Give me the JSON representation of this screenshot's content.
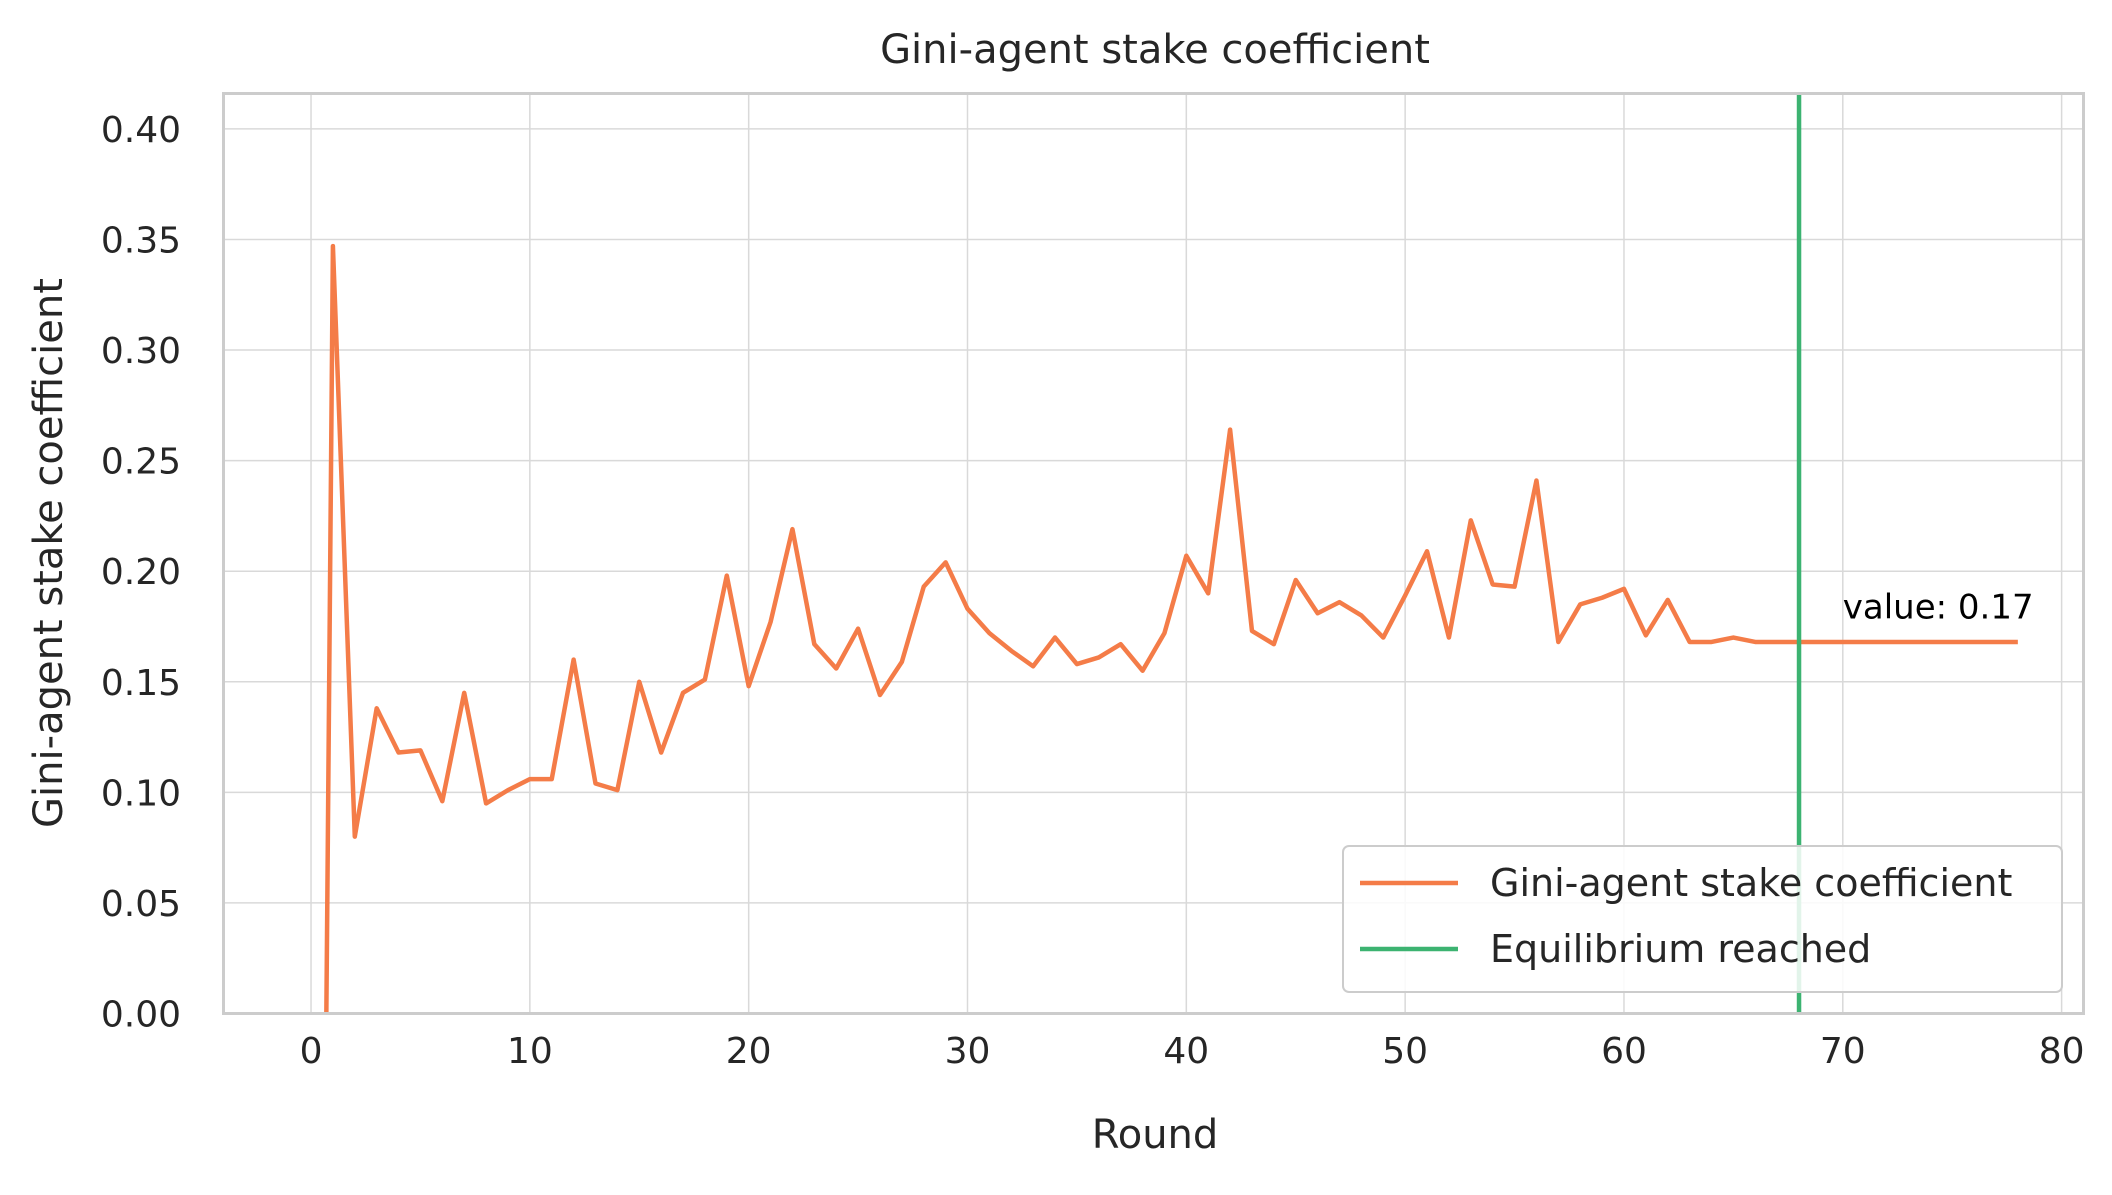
{
  "chart_data": {
    "type": "line",
    "title": "Gini-agent stake coefficient",
    "xlabel": "Round",
    "ylabel": "Gini-agent stake coefficient",
    "xlim": [
      -4,
      81
    ],
    "ylim": [
      0,
      0.416
    ],
    "grid": true,
    "legend_placement": "lower-right",
    "xticks": [
      0,
      10,
      20,
      30,
      40,
      50,
      60,
      70,
      80
    ],
    "xtick_labels": [
      "0",
      "10",
      "20",
      "30",
      "40",
      "50",
      "60",
      "70",
      "80"
    ],
    "yticks": [
      0,
      0.05,
      0.1,
      0.15,
      0.2,
      0.25,
      0.3,
      0.35,
      0.4
    ],
    "ytick_labels": [
      "0.00",
      "0.05",
      "0.10",
      "0.15",
      "0.20",
      "0.25",
      "0.30",
      "0.35",
      "0.40"
    ],
    "series": [
      {
        "name": "Gini-agent stake coefficient",
        "color": "#f47c48",
        "x": [
          0.7,
          1,
          2,
          3,
          4,
          5,
          6,
          7,
          8,
          9,
          10,
          11,
          12,
          13,
          14,
          15,
          16,
          17,
          18,
          19,
          20,
          21,
          22,
          23,
          24,
          25,
          26,
          27,
          28,
          29,
          30,
          31,
          32,
          33,
          34,
          35,
          36,
          37,
          38,
          39,
          40,
          41,
          42,
          43,
          44,
          45,
          46,
          47,
          48,
          49,
          50,
          51,
          52,
          53,
          54,
          55,
          56,
          57,
          58,
          59,
          60,
          61,
          62,
          63,
          64,
          65,
          66,
          67,
          68,
          69,
          70,
          71,
          72,
          73,
          74,
          75,
          76,
          77,
          78
        ],
        "y": [
          0.0,
          0.347,
          0.08,
          0.138,
          0.118,
          0.119,
          0.096,
          0.145,
          0.095,
          0.101,
          0.106,
          0.106,
          0.16,
          0.104,
          0.101,
          0.15,
          0.118,
          0.145,
          0.151,
          0.198,
          0.148,
          0.177,
          0.219,
          0.167,
          0.156,
          0.174,
          0.144,
          0.159,
          0.193,
          0.204,
          0.183,
          0.172,
          0.164,
          0.157,
          0.17,
          0.158,
          0.161,
          0.167,
          0.155,
          0.172,
          0.207,
          0.19,
          0.264,
          0.173,
          0.167,
          0.196,
          0.181,
          0.186,
          0.18,
          0.17,
          0.189,
          0.209,
          0.17,
          0.223,
          0.194,
          0.193,
          0.241,
          0.168,
          0.185,
          0.188,
          0.192,
          0.171,
          0.187,
          0.168,
          0.168,
          0.17,
          0.168,
          0.168,
          0.168,
          0.168,
          0.168,
          0.168,
          0.168,
          0.168,
          0.168,
          0.168,
          0.168,
          0.168,
          0.168
        ]
      },
      {
        "name": "Equilibrium reached",
        "color": "#3cb371",
        "type": "vline",
        "x": 68
      }
    ],
    "annotations": [
      {
        "text": "value: 0.17",
        "x": 70,
        "y": 0.174
      }
    ]
  }
}
